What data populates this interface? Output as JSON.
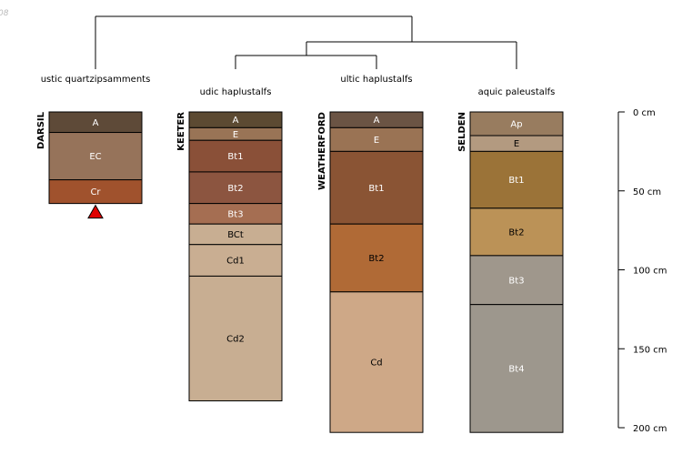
{
  "corner_text": "08",
  "scale_labels": [
    "0 cm",
    "50 cm",
    "100 cm",
    "150 cm",
    "200 cm"
  ],
  "scale_values_cm": [
    0,
    50,
    100,
    150,
    200
  ],
  "dendrogram": {
    "groups": [
      "ustic quartzipsamments",
      "udic haplustalfs",
      "ultic haplustalfs",
      "aquic paleustalfs"
    ]
  },
  "profiles": [
    {
      "name": "DARSIL",
      "group": "ustic quartzipsamments",
      "bottom_marker": true,
      "horizons": [
        {
          "name": "A",
          "top": 0,
          "bottom": 13,
          "color": "#5e4a38",
          "text_color": "#ffffff"
        },
        {
          "name": "EC",
          "top": 13,
          "bottom": 43,
          "color": "#96735a",
          "text_color": "#ffffff"
        },
        {
          "name": "Cr",
          "top": 43,
          "bottom": 58,
          "color": "#a0522d",
          "text_color": "#ffffff"
        }
      ]
    },
    {
      "name": "KEETER",
      "group": "udic haplustalfs",
      "bottom_marker": false,
      "horizons": [
        {
          "name": "A",
          "top": 0,
          "bottom": 10,
          "color": "#5c4a32",
          "text_color": "#ffffff"
        },
        {
          "name": "E",
          "top": 10,
          "bottom": 18,
          "color": "#997456",
          "text_color": "#ffffff"
        },
        {
          "name": "Bt1",
          "top": 18,
          "bottom": 38,
          "color": "#8a5038",
          "text_color": "#ffffff"
        },
        {
          "name": "Bt2",
          "top": 38,
          "bottom": 58,
          "color": "#8c5540",
          "text_color": "#ffffff"
        },
        {
          "name": "Bt3",
          "top": 58,
          "bottom": 71,
          "color": "#a56e52",
          "text_color": "#ffffff"
        },
        {
          "name": "BCt",
          "top": 71,
          "bottom": 84,
          "color": "#c8ae92",
          "text_color": "#000000"
        },
        {
          "name": "Cd1",
          "top": 84,
          "bottom": 104,
          "color": "#c9ae92",
          "text_color": "#000000"
        },
        {
          "name": "Cd2",
          "top": 104,
          "bottom": 183,
          "color": "#c8ae92",
          "text_color": "#000000"
        }
      ]
    },
    {
      "name": "WEATHERFORD",
      "group": "ultic haplustalfs",
      "bottom_marker": false,
      "horizons": [
        {
          "name": "A",
          "top": 0,
          "bottom": 10,
          "color": "#6b5444",
          "text_color": "#ffffff"
        },
        {
          "name": "E",
          "top": 10,
          "bottom": 25,
          "color": "#9a7354",
          "text_color": "#ffffff"
        },
        {
          "name": "Bt1",
          "top": 25,
          "bottom": 71,
          "color": "#8a5434",
          "text_color": "#ffffff"
        },
        {
          "name": "Bt2",
          "top": 71,
          "bottom": 114,
          "color": "#b06a36",
          "text_color": "#000000"
        },
        {
          "name": "Cd",
          "top": 114,
          "bottom": 203,
          "color": "#cea887",
          "text_color": "#000000"
        }
      ]
    },
    {
      "name": "SELDEN",
      "group": "aquic paleustalfs",
      "bottom_marker": false,
      "horizons": [
        {
          "name": "Ap",
          "top": 0,
          "bottom": 15,
          "color": "#987c5f",
          "text_color": "#ffffff"
        },
        {
          "name": "E",
          "top": 15,
          "bottom": 25,
          "color": "#b39a80",
          "text_color": "#000000"
        },
        {
          "name": "Bt1",
          "top": 25,
          "bottom": 61,
          "color": "#9b7338",
          "text_color": "#ffffff"
        },
        {
          "name": "Bt2",
          "top": 61,
          "bottom": 91,
          "color": "#bb9257",
          "text_color": "#000000"
        },
        {
          "name": "Bt3",
          "top": 91,
          "bottom": 122,
          "color": "#9f978c",
          "text_color": "#ffffff"
        },
        {
          "name": "Bt4",
          "top": 122,
          "bottom": 203,
          "color": "#9d978d",
          "text_color": "#ffffff"
        }
      ]
    }
  ]
}
